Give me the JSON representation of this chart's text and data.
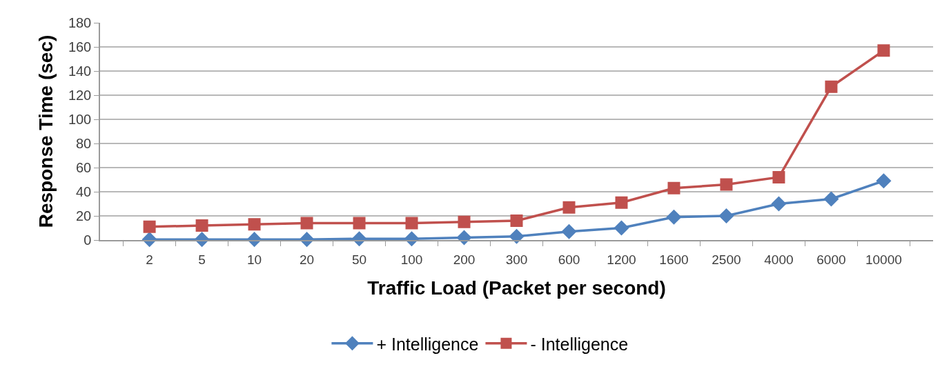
{
  "chart_data": {
    "type": "line",
    "xlabel": "Traffic Load (Packet per second)",
    "ylabel": "Response Time (sec)",
    "categories": [
      "2",
      "5",
      "10",
      "20",
      "50",
      "100",
      "200",
      "300",
      "600",
      "1200",
      "1600",
      "2500",
      "4000",
      "6000",
      "10000"
    ],
    "series": [
      {
        "name": "+ Intelligence",
        "color": "#4f81bd",
        "marker": "diamond",
        "values": [
          0.5,
          0.5,
          0.5,
          0.5,
          1,
          1,
          2,
          3,
          7,
          10,
          19,
          20,
          30,
          34,
          49
        ]
      },
      {
        "name": "- Intelligence",
        "color": "#c0504d",
        "marker": "square",
        "values": [
          11,
          12,
          13,
          14,
          14,
          14,
          15,
          16,
          27,
          31,
          43,
          46,
          52,
          127,
          157
        ]
      }
    ],
    "ylim": [
      0,
      180
    ],
    "yticks": [
      0,
      20,
      40,
      60,
      80,
      100,
      120,
      140,
      160,
      180
    ],
    "grid": "y",
    "legend": "bottom",
    "line_style": "solid"
  }
}
